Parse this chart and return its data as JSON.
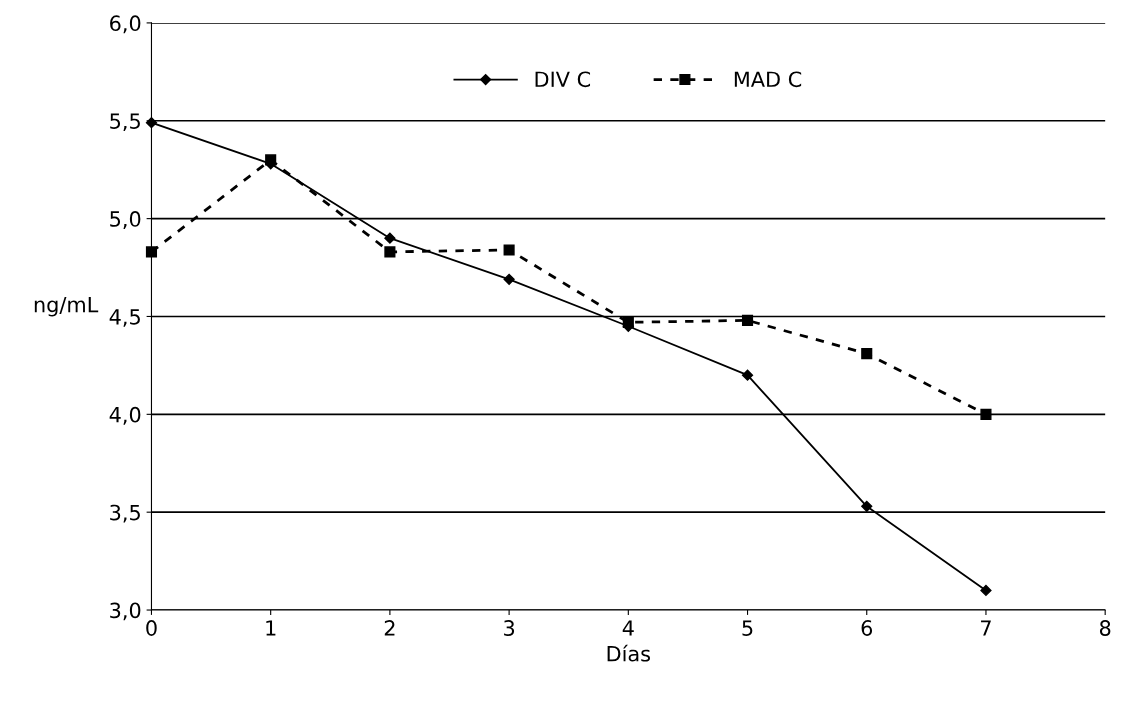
{
  "chart_data": {
    "type": "line",
    "xlabel": "Días",
    "ylabel": "ng/mL",
    "x": [
      0,
      1,
      2,
      3,
      4,
      5,
      6,
      7
    ],
    "series": [
      {
        "name": "DIV C",
        "color": "#000000",
        "values": [
          5.49,
          5.28,
          4.9,
          4.69,
          4.45,
          4.2,
          3.53,
          3.1
        ],
        "marker": "diamond",
        "line_style": "solid"
      },
      {
        "name": "MAD C",
        "color": "#000000",
        "values": [
          4.83,
          5.3,
          4.83,
          4.84,
          4.47,
          4.48,
          4.31,
          4.0
        ],
        "marker": "square",
        "line_style": "dashed"
      }
    ],
    "xlim": [
      0,
      8
    ],
    "xticks": [
      0,
      1,
      2,
      3,
      4,
      5,
      6,
      7,
      8
    ],
    "ylim": [
      3.0,
      6.0
    ],
    "yticks": [
      {
        "value": 3.0,
        "label": "3,0"
      },
      {
        "value": 3.5,
        "label": "3,5"
      },
      {
        "value": 4.0,
        "label": "4,0"
      },
      {
        "value": 4.5,
        "label": "4,5"
      },
      {
        "value": 5.0,
        "label": "5,0"
      },
      {
        "value": 5.5,
        "label": "5,5"
      },
      {
        "value": 6.0,
        "label": "6,0"
      }
    ],
    "grid": "y",
    "legend": "top"
  }
}
